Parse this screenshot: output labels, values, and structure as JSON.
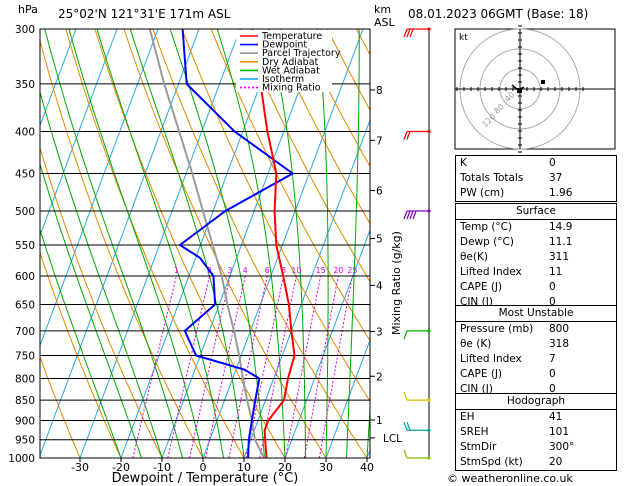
{
  "header": {
    "location": "25°02'N 121°31'E 171m ASL",
    "datetime": "08.01.2023 06GMT (Base: 18)",
    "hpa_label": "hPa",
    "km_label": "km",
    "asl_label": "ASL",
    "mixing_ratio_label": "Mixing Ratio (g/kg)"
  },
  "chart_data": {
    "type": "skew-T log-P",
    "xlabel": "Dewpoint / Temperature (°C)",
    "x_ticks": [
      -30,
      -20,
      -10,
      0,
      10,
      20,
      30,
      40
    ],
    "xlim": [
      -35,
      40
    ],
    "pressure_levels": [
      300,
      350,
      400,
      450,
      500,
      550,
      600,
      650,
      700,
      750,
      800,
      850,
      900,
      950,
      1000
    ],
    "km_ticks": [
      {
        "label": "8",
        "p": 356
      },
      {
        "label": "7",
        "p": 410
      },
      {
        "label": "6",
        "p": 472
      },
      {
        "label": "5",
        "p": 540
      },
      {
        "label": "4",
        "p": 616
      },
      {
        "label": "3",
        "p": 701
      },
      {
        "label": "2",
        "p": 795
      },
      {
        "label": "1",
        "p": 899
      },
      {
        "label": "LCL",
        "p": 945
      }
    ],
    "mixing_ratio_values": [
      "1",
      "2",
      "3",
      "4",
      "6",
      "8",
      "10",
      "15",
      "20",
      "25"
    ],
    "legend": [
      {
        "name": "Temperature",
        "color": "#ff0000"
      },
      {
        "name": "Dewpoint",
        "color": "#0000ff"
      },
      {
        "name": "Parcel Trajectory",
        "color": "#999999"
      },
      {
        "name": "Dry Adiabat",
        "color": "#ff8c00"
      },
      {
        "name": "Wet Adiabat",
        "color": "#00bb00"
      },
      {
        "name": "Isotherm",
        "color": "#00aaff"
      },
      {
        "name": "Mixing Ratio",
        "color": "#ff00ff"
      }
    ],
    "temperature": [
      {
        "p": 1000,
        "t": 15.5
      },
      {
        "p": 975,
        "t": 14.5
      },
      {
        "p": 950,
        "t": 13.5
      },
      {
        "p": 925,
        "t": 12.5
      },
      {
        "p": 900,
        "t": 12.5
      },
      {
        "p": 850,
        "t": 14.5
      },
      {
        "p": 800,
        "t": 13.5
      },
      {
        "p": 750,
        "t": 13
      },
      {
        "p": 700,
        "t": 10
      },
      {
        "p": 650,
        "t": 7
      },
      {
        "p": 600,
        "t": 3
      },
      {
        "p": 550,
        "t": -1.5
      },
      {
        "p": 500,
        "t": -5
      },
      {
        "p": 450,
        "t": -8
      },
      {
        "p": 400,
        "t": -14
      },
      {
        "p": 350,
        "t": -20
      },
      {
        "p": 300,
        "t": -27
      }
    ],
    "dewpoint": [
      {
        "p": 1000,
        "t": 11
      },
      {
        "p": 950,
        "t": 9.5
      },
      {
        "p": 900,
        "t": 8.5
      },
      {
        "p": 850,
        "t": 7.5
      },
      {
        "p": 800,
        "t": 6.5
      },
      {
        "p": 780,
        "t": 2
      },
      {
        "p": 750,
        "t": -11
      },
      {
        "p": 700,
        "t": -16
      },
      {
        "p": 650,
        "t": -11
      },
      {
        "p": 600,
        "t": -14
      },
      {
        "p": 570,
        "t": -19
      },
      {
        "p": 550,
        "t": -25
      },
      {
        "p": 500,
        "t": -17
      },
      {
        "p": 450,
        "t": -4
      },
      {
        "p": 400,
        "t": -22
      },
      {
        "p": 350,
        "t": -38
      },
      {
        "p": 300,
        "t": -44
      }
    ],
    "parcel": [
      {
        "p": 1000,
        "t": 14.9
      },
      {
        "p": 950,
        "t": 11
      },
      {
        "p": 900,
        "t": 8.5
      },
      {
        "p": 850,
        "t": 5.5
      },
      {
        "p": 800,
        "t": 2.5
      },
      {
        "p": 750,
        "t": -0.5
      },
      {
        "p": 700,
        "t": -4
      },
      {
        "p": 650,
        "t": -8
      },
      {
        "p": 600,
        "t": -12
      },
      {
        "p": 550,
        "t": -17
      },
      {
        "p": 500,
        "t": -22.5
      },
      {
        "p": 450,
        "t": -28.5
      },
      {
        "p": 400,
        "t": -35.5
      },
      {
        "p": 350,
        "t": -43.5
      },
      {
        "p": 300,
        "t": -52
      }
    ]
  },
  "indices": [
    {
      "key": "K",
      "value": "0"
    },
    {
      "key": "Totals Totals",
      "value": "37"
    },
    {
      "key": "PW (cm)",
      "value": "1.96"
    }
  ],
  "surface": {
    "title": "Surface",
    "rows": [
      {
        "key": "Temp (°C)",
        "value": "14.9"
      },
      {
        "key": "Dewp (°C)",
        "value": "11.1"
      },
      {
        "key": "θe(K)",
        "value": "311"
      },
      {
        "key": "Lifted Index",
        "value": "11"
      },
      {
        "key": "CAPE (J)",
        "value": "0"
      },
      {
        "key": "CIN (J)",
        "value": "0"
      }
    ]
  },
  "most_unstable": {
    "title": "Most Unstable",
    "rows": [
      {
        "key": "Pressure (mb)",
        "value": "800"
      },
      {
        "key": "θe (K)",
        "value": "318"
      },
      {
        "key": "Lifted Index",
        "value": "7"
      },
      {
        "key": "CAPE (J)",
        "value": "0"
      },
      {
        "key": "CIN (J)",
        "value": "0"
      }
    ]
  },
  "hodograph": {
    "title": "Hodograph",
    "unit_label": "kt",
    "ring_labels": [
      "40",
      "80",
      "120"
    ],
    "rows": [
      {
        "key": "EH",
        "value": "41"
      },
      {
        "key": "SREH",
        "value": "101"
      },
      {
        "key": "StmDir",
        "value": "300°"
      },
      {
        "key": "StmSpd (kt)",
        "value": "20"
      }
    ]
  },
  "copyright": "© weatheronline.co.uk"
}
